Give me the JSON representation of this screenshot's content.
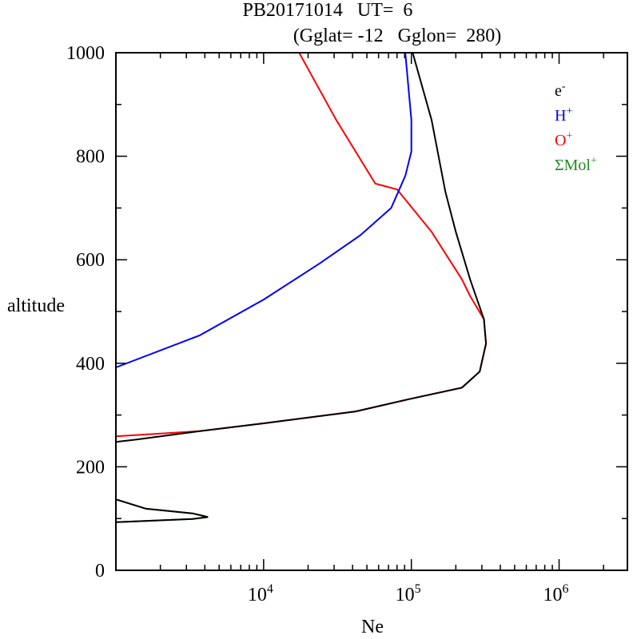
{
  "chart_data": {
    "type": "line",
    "title_line1": "PB20171014   UT=  6",
    "title_line2": "(Gglat= -12   Gglon=  280)",
    "xlabel": "Ne",
    "ylabel": "altitude",
    "xscale": "log",
    "xlim": [
      1000,
      2900000
    ],
    "ylim": [
      0,
      1000
    ],
    "yticks": [
      0,
      200,
      400,
      600,
      800,
      1000
    ],
    "xticks": [
      {
        "base": "10",
        "exp": "4",
        "value": 10000
      },
      {
        "base": "10",
        "exp": "5",
        "value": 100000
      },
      {
        "base": "10",
        "exp": "6",
        "value": 1000000
      }
    ],
    "legend_position": "top-right",
    "series": [
      {
        "name": "ΣMol",
        "sup": "+",
        "color": "#228b22",
        "points": [
          [
            1000,
            137
          ],
          [
            1600,
            119
          ],
          [
            3300,
            110
          ],
          [
            4200,
            103
          ],
          [
            3300,
            99
          ],
          [
            1000,
            93
          ]
        ]
      },
      {
        "name": "O",
        "sup": "+",
        "color": "#ff0000",
        "points": [
          [
            17400,
            1000
          ],
          [
            31000,
            870
          ],
          [
            57000,
            747
          ],
          [
            80000,
            736
          ],
          [
            137000,
            654
          ],
          [
            220000,
            562
          ],
          [
            250000,
            530
          ],
          [
            310000,
            485
          ],
          [
            320000,
            438
          ],
          [
            290000,
            384
          ],
          [
            220000,
            353
          ],
          [
            94000,
            330
          ],
          [
            42000,
            307
          ],
          [
            10000,
            284
          ],
          [
            3700,
            269
          ],
          [
            1000,
            259
          ]
        ]
      },
      {
        "name": "H",
        "sup": "+",
        "color": "#0000ff",
        "points": [
          [
            91000,
            1000
          ],
          [
            100000,
            870
          ],
          [
            100000,
            809
          ],
          [
            91000,
            762
          ],
          [
            73000,
            700
          ],
          [
            45000,
            647
          ],
          [
            24000,
            593
          ],
          [
            10000,
            523
          ],
          [
            3700,
            454
          ],
          [
            1000,
            392
          ]
        ]
      },
      {
        "name": "e",
        "sup": "-",
        "color": "#000000",
        "points": [
          [
            102000,
            1000
          ],
          [
            137000,
            870
          ],
          [
            170000,
            731
          ],
          [
            200000,
            654
          ],
          [
            250000,
            562
          ],
          [
            310000,
            485
          ],
          [
            320000,
            438
          ],
          [
            290000,
            384
          ],
          [
            220000,
            353
          ],
          [
            94000,
            330
          ],
          [
            42000,
            307
          ],
          [
            10000,
            284
          ],
          [
            3700,
            269
          ],
          [
            1400,
            253
          ],
          [
            1000,
            248
          ]
        ],
        "points_low": [
          [
            1000,
            137
          ],
          [
            1600,
            119
          ],
          [
            3300,
            110
          ],
          [
            4200,
            103
          ],
          [
            3300,
            99
          ],
          [
            1000,
            93
          ]
        ]
      }
    ],
    "legend_order": [
      3,
      2,
      1,
      0
    ]
  }
}
